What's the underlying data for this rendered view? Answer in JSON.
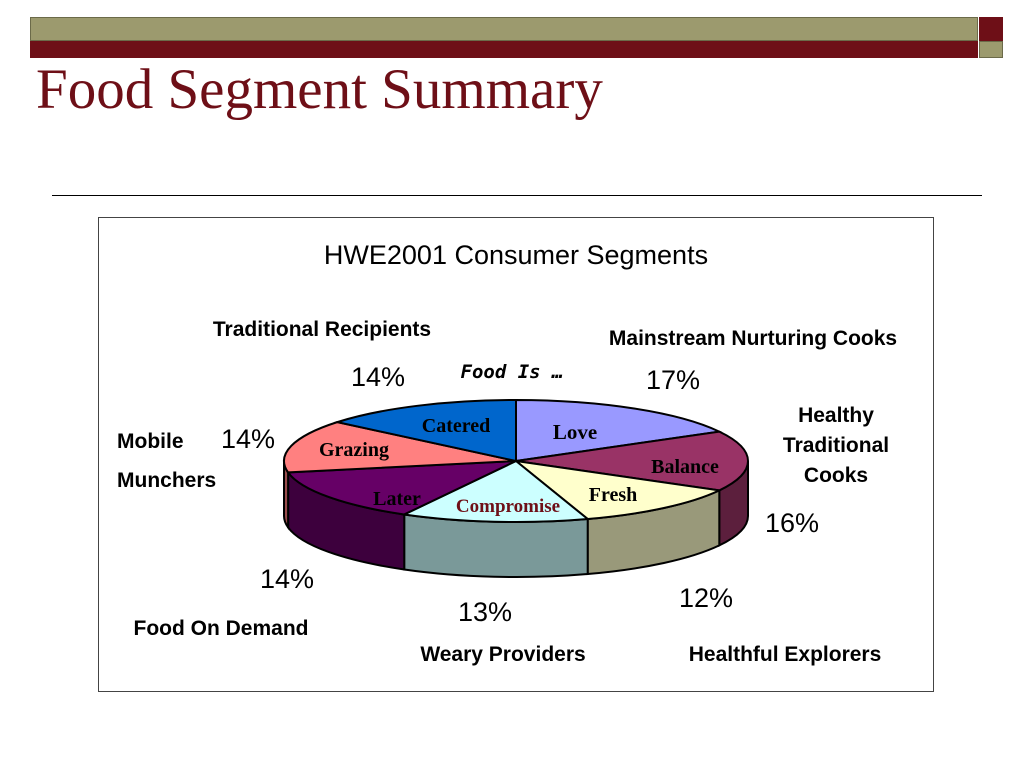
{
  "slide": {
    "title": "Food Segment Summary"
  },
  "colors": {
    "title": "#6e0f17",
    "bar_olive": "#9c9a6e",
    "bar_dark": "#6e0f17"
  },
  "chart_data": {
    "type": "pie",
    "title": "HWE2001 Consumer Segments",
    "center_label": "Food Is …",
    "slices": [
      {
        "segment": "Mainstream Nurturing Cooks",
        "inner_label": "Love",
        "value": 17,
        "value_label": "17%",
        "color": "#9999ff"
      },
      {
        "segment": "Healthy Traditional Cooks",
        "inner_label": "Balance",
        "value": 16,
        "value_label": "16%",
        "color": "#993366"
      },
      {
        "segment": "Healthful Explorers",
        "inner_label": "Fresh",
        "value": 12,
        "value_label": "12%",
        "color": "#ffffcc"
      },
      {
        "segment": "Weary Providers",
        "inner_label": "Compromise",
        "value": 13,
        "value_label": "13%",
        "color": "#ccffff"
      },
      {
        "segment": "Food On Demand",
        "inner_label": "Later",
        "value": 14,
        "value_label": "14%",
        "color": "#660066"
      },
      {
        "segment": "Mobile Munchers",
        "inner_label": "Grazing",
        "value": 14,
        "value_label": "14%",
        "color": "#ff8080"
      },
      {
        "segment": "Traditional Recipients",
        "inner_label": "Catered",
        "value": 14,
        "value_label": "14%",
        "color": "#0066cc"
      }
    ]
  }
}
